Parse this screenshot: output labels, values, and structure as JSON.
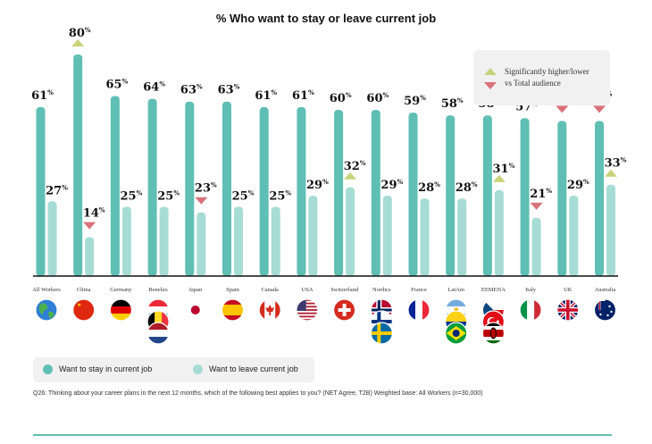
{
  "chart_data": {
    "type": "bar",
    "title": "% Who want to stay or leave current job",
    "ylim": [
      0,
      80
    ],
    "categories": [
      "All Workers",
      "China",
      "Germany",
      "Benelux",
      "Japan",
      "Spain",
      "Canada",
      "USA",
      "Switzerland",
      "Nordics",
      "France",
      "LatAm",
      "EEMENA",
      "Italy",
      "UK",
      "Australia"
    ],
    "series": [
      {
        "name": "Want to stay in current job",
        "color": "#5fbfb4",
        "values": [
          61,
          80,
          65,
          64,
          63,
          63,
          61,
          61,
          60,
          60,
          59,
          58,
          58,
          57,
          56,
          56
        ],
        "markers": [
          "none",
          "up",
          "none",
          "none",
          "none",
          "none",
          "none",
          "none",
          "none",
          "none",
          "none",
          "none",
          "none",
          "none",
          "down",
          "down"
        ]
      },
      {
        "name": "Want to leave current job",
        "color": "#a7dcd6",
        "values": [
          27,
          14,
          25,
          25,
          23,
          25,
          25,
          29,
          32,
          29,
          28,
          28,
          31,
          21,
          29,
          33
        ],
        "markers": [
          "none",
          "down",
          "none",
          "none",
          "down",
          "none",
          "none",
          "none",
          "up",
          "none",
          "none",
          "none",
          "up",
          "down",
          "none",
          "up"
        ]
      }
    ],
    "value_suffix": "%"
  },
  "significance_legend": {
    "text_line1": "Significantly higher/lower",
    "text_line2": "vs Total audience",
    "up_color": "#c7d37a",
    "down_color": "#d9727a"
  },
  "legend": {
    "stay_label": "Want to stay in current job",
    "leave_label": "Want to leave current job"
  },
  "flags": [
    [
      "globe-icon"
    ],
    [
      "china-flag-icon"
    ],
    [
      "germany-flag-icon"
    ],
    [
      "luxembourg-flag-icon",
      "belgium-flag-icon",
      "netherlands-flag-icon"
    ],
    [
      "japan-flag-icon"
    ],
    [
      "spain-flag-icon"
    ],
    [
      "canada-flag-icon"
    ],
    [
      "usa-flag-icon"
    ],
    [
      "switzerland-flag-icon"
    ],
    [
      "norway-flag-icon",
      "finland-flag-icon",
      "sweden-flag-icon"
    ],
    [
      "france-flag-icon"
    ],
    [
      "argentina-flag-icon",
      "colombia-flag-icon",
      "brazil-flag-icon"
    ],
    [
      "czech-flag-icon",
      "turkey-flag-icon",
      "kenya-flag-icon"
    ],
    [
      "italy-flag-icon"
    ],
    [
      "uk-flag-icon"
    ],
    [
      "australia-flag-icon"
    ]
  ],
  "footnote": "Q26: Thinking about your career plans in the next 12 months, which of the following best applies to you? (NET Agree, T2B) Weighted base: All Workers (n=30,000)"
}
